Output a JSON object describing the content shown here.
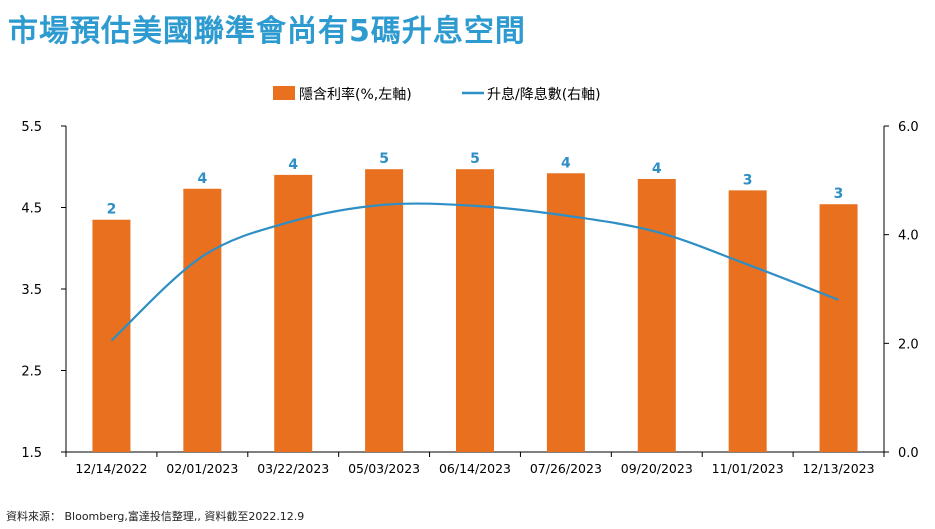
{
  "title": "市場預估美國聯準會尚有5碼升息空間",
  "source": "資料來源： Bloomberg,富達投信整理,, 資料截至2022.12.9",
  "colors": {
    "bar": "#e8701f",
    "line": "#2e8fc6",
    "title": "#2e9bd0"
  },
  "chart_data": {
    "type": "bar",
    "categories": [
      "12/14/2022",
      "02/01/2023",
      "03/22/2023",
      "05/03/2023",
      "06/14/2023",
      "07/26/2023",
      "09/20/2023",
      "11/01/2023",
      "12/13/2023"
    ],
    "series": [
      {
        "name": "隱含利率(%,左軸)",
        "type": "bar",
        "axis": "left",
        "values": [
          4.35,
          4.73,
          4.9,
          4.97,
          4.97,
          4.92,
          4.85,
          4.71,
          4.54
        ],
        "labels": [
          "2",
          "4",
          "4",
          "5",
          "5",
          "4",
          "4",
          "3",
          "3"
        ]
      },
      {
        "name": "升息/降息數(右軸)",
        "type": "line",
        "axis": "right",
        "values": [
          2.05,
          3.6,
          4.25,
          4.55,
          4.53,
          4.35,
          4.05,
          3.45,
          2.8
        ]
      }
    ],
    "y_left": {
      "min": 1.5,
      "max": 5.5,
      "ticks": [
        "1.5",
        "2.5",
        "3.5",
        "4.5",
        "5.5"
      ]
    },
    "y_right": {
      "min": 0,
      "max": 6,
      "ticks": [
        "0.0",
        "2.0",
        "4.0",
        "6.0"
      ]
    },
    "legend_position": "top-center",
    "grid": false
  }
}
